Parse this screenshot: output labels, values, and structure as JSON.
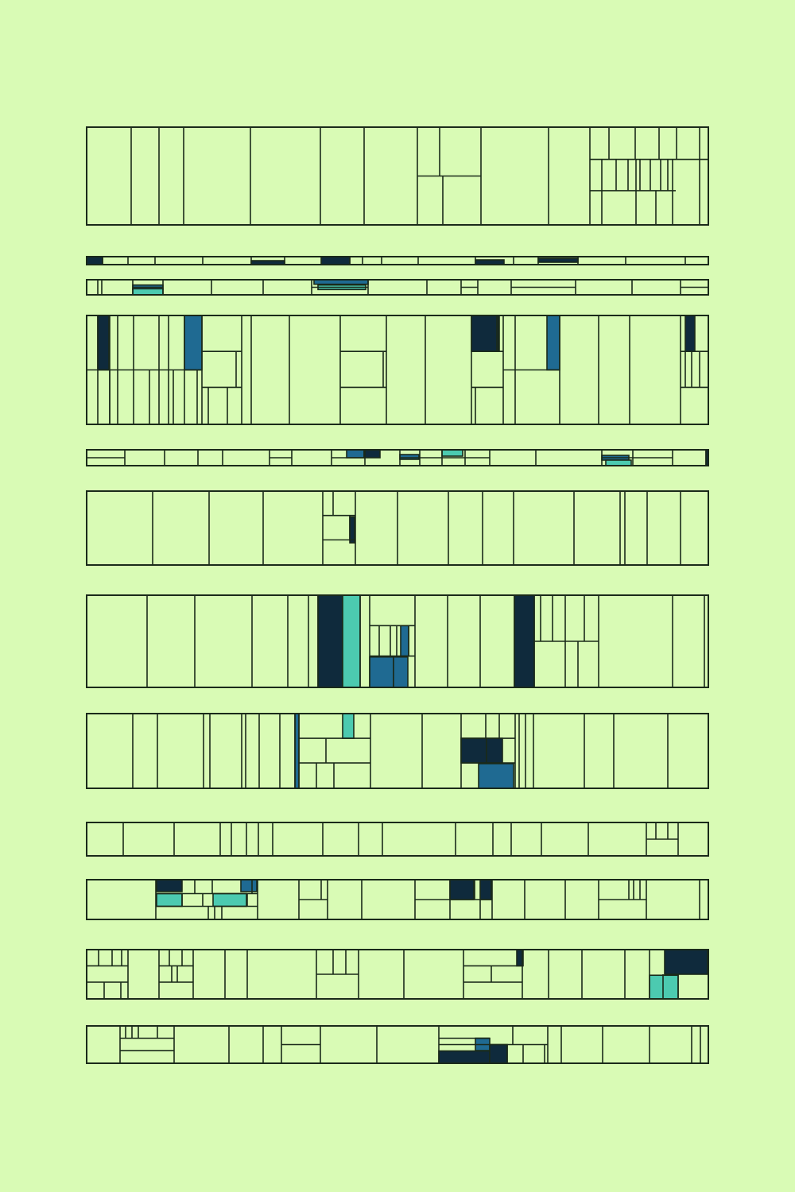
{
  "palette": {
    "background": "#d9fbb5",
    "line": "#1a2a1a",
    "empty": "#d9fbb5",
    "navy": "#0f2a3c",
    "blue": "#1f6a92",
    "teal": "#4ccab0"
  },
  "artwork": {
    "name": "rectangle-strip-composition",
    "strip_count": 12,
    "accent_colors": [
      "navy",
      "blue",
      "teal"
    ]
  }
}
